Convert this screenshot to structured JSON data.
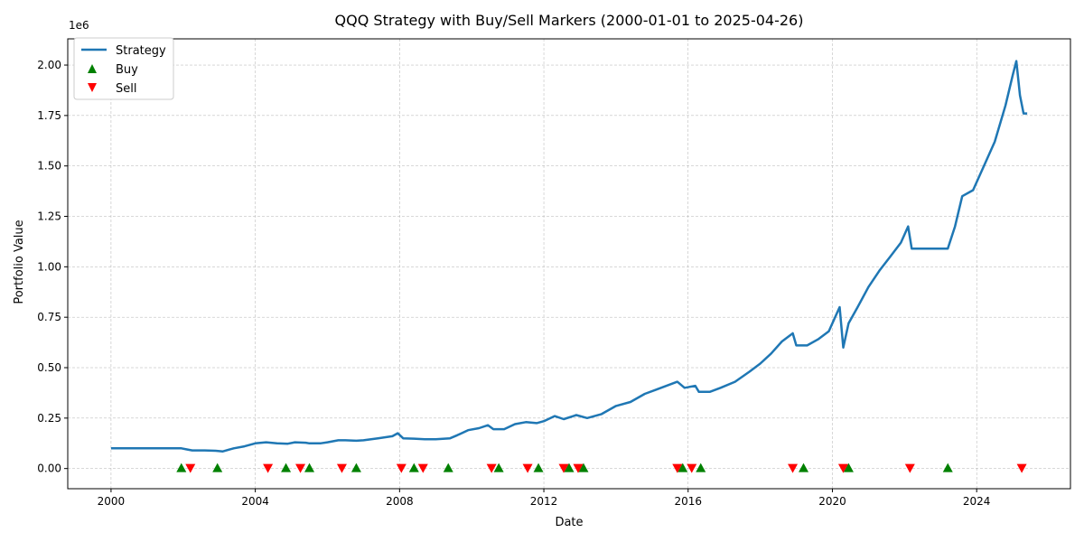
{
  "chart_data": {
    "type": "line",
    "title": "QQQ Strategy with Buy/Sell Markers (2000-01-01 to 2025-04-26)",
    "xlabel": "Date",
    "ylabel": "Portfolio Value",
    "y_scale_label": "1e6",
    "xlim": [
      1998.8,
      2026.6
    ],
    "ylim": [
      -0.1,
      2.13
    ],
    "x_ticks": [
      2000,
      2004,
      2008,
      2012,
      2016,
      2020,
      2024
    ],
    "x_tick_labels": [
      "2000",
      "2004",
      "2008",
      "2012",
      "2016",
      "2020",
      "2024"
    ],
    "y_ticks": [
      0,
      0.25,
      0.5,
      0.75,
      1.0,
      1.25,
      1.5,
      1.75,
      2.0
    ],
    "y_tick_labels": [
      "0.00",
      "0.25",
      "0.50",
      "0.75",
      "1.00",
      "1.25",
      "1.50",
      "1.75",
      "2.00"
    ],
    "grid": true,
    "legend_position": "top-left",
    "legend": [
      {
        "label": "Strategy",
        "kind": "line",
        "color": "#1f77b4"
      },
      {
        "label": "Buy",
        "kind": "triangle-up",
        "color": "#008000"
      },
      {
        "label": "Sell",
        "kind": "triangle-down",
        "color": "#ff0000"
      }
    ],
    "series": [
      {
        "name": "Strategy",
        "color": "#1f77b4",
        "points": [
          [
            2000.0,
            0.1
          ],
          [
            2001.95,
            0.1
          ],
          [
            2002.1,
            0.095
          ],
          [
            2002.25,
            0.09
          ],
          [
            2002.6,
            0.09
          ],
          [
            2002.9,
            0.088
          ],
          [
            2003.1,
            0.085
          ],
          [
            2003.4,
            0.1
          ],
          [
            2003.7,
            0.11
          ],
          [
            2004.0,
            0.125
          ],
          [
            2004.3,
            0.13
          ],
          [
            2004.6,
            0.125
          ],
          [
            2004.9,
            0.123
          ],
          [
            2005.1,
            0.13
          ],
          [
            2005.4,
            0.128
          ],
          [
            2005.5,
            0.125
          ],
          [
            2005.8,
            0.125
          ],
          [
            2006.0,
            0.13
          ],
          [
            2006.3,
            0.14
          ],
          [
            2006.5,
            0.14
          ],
          [
            2006.8,
            0.138
          ],
          [
            2007.0,
            0.14
          ],
          [
            2007.4,
            0.15
          ],
          [
            2007.8,
            0.16
          ],
          [
            2007.95,
            0.175
          ],
          [
            2008.1,
            0.15
          ],
          [
            2008.4,
            0.148
          ],
          [
            2008.7,
            0.145
          ],
          [
            2009.0,
            0.145
          ],
          [
            2009.4,
            0.15
          ],
          [
            2009.6,
            0.165
          ],
          [
            2009.9,
            0.19
          ],
          [
            2010.2,
            0.2
          ],
          [
            2010.45,
            0.215
          ],
          [
            2010.6,
            0.195
          ],
          [
            2010.9,
            0.195
          ],
          [
            2011.2,
            0.22
          ],
          [
            2011.5,
            0.23
          ],
          [
            2011.8,
            0.225
          ],
          [
            2012.0,
            0.235
          ],
          [
            2012.3,
            0.26
          ],
          [
            2012.55,
            0.245
          ],
          [
            2012.9,
            0.265
          ],
          [
            2013.2,
            0.25
          ],
          [
            2013.6,
            0.27
          ],
          [
            2014.0,
            0.31
          ],
          [
            2014.4,
            0.33
          ],
          [
            2014.8,
            0.37
          ],
          [
            2015.1,
            0.39
          ],
          [
            2015.4,
            0.41
          ],
          [
            2015.7,
            0.43
          ],
          [
            2015.9,
            0.4
          ],
          [
            2016.2,
            0.41
          ],
          [
            2016.3,
            0.38
          ],
          [
            2016.6,
            0.38
          ],
          [
            2016.9,
            0.4
          ],
          [
            2017.3,
            0.43
          ],
          [
            2017.7,
            0.48
          ],
          [
            2018.0,
            0.52
          ],
          [
            2018.3,
            0.57
          ],
          [
            2018.6,
            0.63
          ],
          [
            2018.9,
            0.67
          ],
          [
            2019.0,
            0.61
          ],
          [
            2019.3,
            0.61
          ],
          [
            2019.6,
            0.64
          ],
          [
            2019.9,
            0.68
          ],
          [
            2020.1,
            0.76
          ],
          [
            2020.2,
            0.8
          ],
          [
            2020.3,
            0.6
          ],
          [
            2020.45,
            0.72
          ],
          [
            2020.7,
            0.8
          ],
          [
            2021.0,
            0.9
          ],
          [
            2021.3,
            0.98
          ],
          [
            2021.6,
            1.05
          ],
          [
            2021.9,
            1.12
          ],
          [
            2022.1,
            1.2
          ],
          [
            2022.2,
            1.09
          ],
          [
            2023.2,
            1.09
          ],
          [
            2023.4,
            1.2
          ],
          [
            2023.6,
            1.35
          ],
          [
            2023.9,
            1.38
          ],
          [
            2024.2,
            1.5
          ],
          [
            2024.5,
            1.62
          ],
          [
            2024.8,
            1.8
          ],
          [
            2025.0,
            1.95
          ],
          [
            2025.1,
            2.02
          ],
          [
            2025.2,
            1.85
          ],
          [
            2025.3,
            1.76
          ],
          [
            2025.4,
            1.76
          ]
        ]
      }
    ],
    "buy_markers": [
      {
        "x": 2001.95,
        "y": 0
      },
      {
        "x": 2002.95,
        "y": 0
      },
      {
        "x": 2004.85,
        "y": 0
      },
      {
        "x": 2005.5,
        "y": 0
      },
      {
        "x": 2006.8,
        "y": 0
      },
      {
        "x": 2008.4,
        "y": 0
      },
      {
        "x": 2009.35,
        "y": 0
      },
      {
        "x": 2010.75,
        "y": 0
      },
      {
        "x": 2011.85,
        "y": 0
      },
      {
        "x": 2012.7,
        "y": 0
      },
      {
        "x": 2013.1,
        "y": 0
      },
      {
        "x": 2015.85,
        "y": 0
      },
      {
        "x": 2016.35,
        "y": 0
      },
      {
        "x": 2019.2,
        "y": 0
      },
      {
        "x": 2020.45,
        "y": 0
      },
      {
        "x": 2023.2,
        "y": 0
      }
    ],
    "sell_markers": [
      {
        "x": 2002.2,
        "y": 0
      },
      {
        "x": 2004.35,
        "y": 0
      },
      {
        "x": 2005.25,
        "y": 0
      },
      {
        "x": 2006.4,
        "y": 0
      },
      {
        "x": 2008.05,
        "y": 0
      },
      {
        "x": 2008.65,
        "y": 0
      },
      {
        "x": 2010.55,
        "y": 0
      },
      {
        "x": 2011.55,
        "y": 0
      },
      {
        "x": 2012.55,
        "y": 0
      },
      {
        "x": 2012.95,
        "y": 0
      },
      {
        "x": 2015.7,
        "y": 0
      },
      {
        "x": 2016.1,
        "y": 0
      },
      {
        "x": 2018.9,
        "y": 0
      },
      {
        "x": 2020.3,
        "y": 0
      },
      {
        "x": 2022.15,
        "y": 0
      },
      {
        "x": 2025.25,
        "y": 0
      }
    ]
  }
}
